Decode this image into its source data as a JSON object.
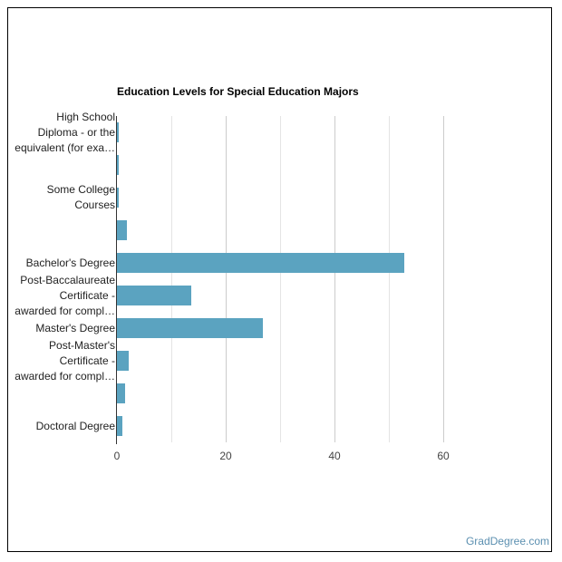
{
  "chart_data": {
    "type": "bar",
    "orientation": "horizontal",
    "title": "Education Levels for Special Education Majors",
    "categories": [
      "High School Diploma - or the equivalent (for exa…",
      "",
      "Some College Courses",
      "",
      "Bachelor's Degree",
      "Post-Baccalaureate Certificate - awarded for compl…",
      "Master's Degree",
      "Post-Master's Certificate - awarded for compl…",
      "",
      "Doctoral Degree"
    ],
    "category_lines": [
      [
        "High School",
        "Diploma - or the",
        "equivalent (for exa…"
      ],
      [],
      [
        "Some College",
        "Courses"
      ],
      [],
      [
        "Bachelor's Degree"
      ],
      [
        "Post-Baccalaureate",
        "Certificate -",
        "awarded for compl…"
      ],
      [
        "Master's Degree"
      ],
      [
        "Post-Master's",
        "Certificate -",
        "awarded for compl…"
      ],
      [],
      [
        "Doctoral Degree"
      ]
    ],
    "values": [
      0.1,
      0.1,
      0.4,
      1.8,
      52.8,
      13.7,
      26.8,
      2.2,
      1.5,
      1.0
    ],
    "xlabel": "",
    "ylabel": "",
    "xlim": [
      0,
      60
    ],
    "x_ticks": [
      0,
      20,
      40,
      60
    ],
    "grid": true,
    "bar_color": "#5ba3c0",
    "legend": null
  },
  "watermark": "GradDegree.com"
}
